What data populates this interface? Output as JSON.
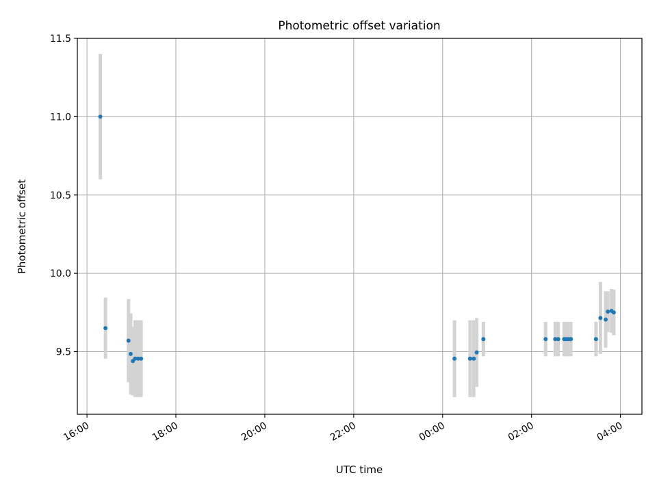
{
  "chart_data": {
    "type": "scatter",
    "title": "Photometric offset variation",
    "xlabel": "UTC time",
    "ylabel": "Photometric offset",
    "grid": true,
    "x_unit": "UTC",
    "x_ticks": [
      "16:00",
      "18:00",
      "20:00",
      "22:00",
      "00:00",
      "02:00",
      "04:00"
    ],
    "y_ticks": [
      "9.5",
      "10.0",
      "10.5",
      "11.0",
      "11.5"
    ],
    "y_tick_values": [
      9.5,
      10.0,
      10.5,
      11.0,
      11.5
    ],
    "ylim": [
      9.1,
      11.5
    ],
    "xlim": [
      "15:47",
      "04:29"
    ],
    "colors": {
      "marker": "#1f77b4",
      "errorbar": "#d3d3d3",
      "grid": "#b0b0b0"
    },
    "series": [
      {
        "points": [
          {
            "x": "16:18",
            "y": 11.0,
            "yerr": 0.4
          },
          {
            "x": "16:25",
            "y": 9.65,
            "yerr": 0.195
          },
          {
            "x": "16:56",
            "y": 9.57,
            "yerr": 0.265
          },
          {
            "x": "16:59",
            "y": 9.485,
            "yerr": 0.26
          },
          {
            "x": "17:02",
            "y": 9.44,
            "yerr": 0.22
          },
          {
            "x": "17:05",
            "y": 9.455,
            "yerr": 0.245
          },
          {
            "x": "17:09",
            "y": 9.455,
            "yerr": 0.245
          },
          {
            "x": "17:13",
            "y": 9.455,
            "yerr": 0.245
          },
          {
            "x": "00:16",
            "y": 9.455,
            "yerr": 0.245
          },
          {
            "x": "00:37",
            "y": 9.455,
            "yerr": 0.245
          },
          {
            "x": "00:42",
            "y": 9.455,
            "yerr": 0.245
          },
          {
            "x": "00:46",
            "y": 9.495,
            "yerr": 0.22
          },
          {
            "x": "00:55",
            "y": 9.58,
            "yerr": 0.11
          },
          {
            "x": "02:19",
            "y": 9.58,
            "yerr": 0.11
          },
          {
            "x": "02:32",
            "y": 9.58,
            "yerr": 0.11
          },
          {
            "x": "02:36",
            "y": 9.58,
            "yerr": 0.11
          },
          {
            "x": "02:44",
            "y": 9.58,
            "yerr": 0.11
          },
          {
            "x": "02:47",
            "y": 9.58,
            "yerr": 0.11
          },
          {
            "x": "02:50",
            "y": 9.58,
            "yerr": 0.11
          },
          {
            "x": "02:53",
            "y": 9.58,
            "yerr": 0.11
          },
          {
            "x": "03:27",
            "y": 9.58,
            "yerr": 0.11
          },
          {
            "x": "03:33",
            "y": 9.715,
            "yerr": 0.23
          },
          {
            "x": "03:40",
            "y": 9.705,
            "yerr": 0.18
          },
          {
            "x": "03:43",
            "y": 9.755,
            "yerr": 0.13
          },
          {
            "x": "03:48",
            "y": 9.76,
            "yerr": 0.14
          },
          {
            "x": "03:51",
            "y": 9.75,
            "yerr": 0.145
          }
        ]
      }
    ]
  }
}
